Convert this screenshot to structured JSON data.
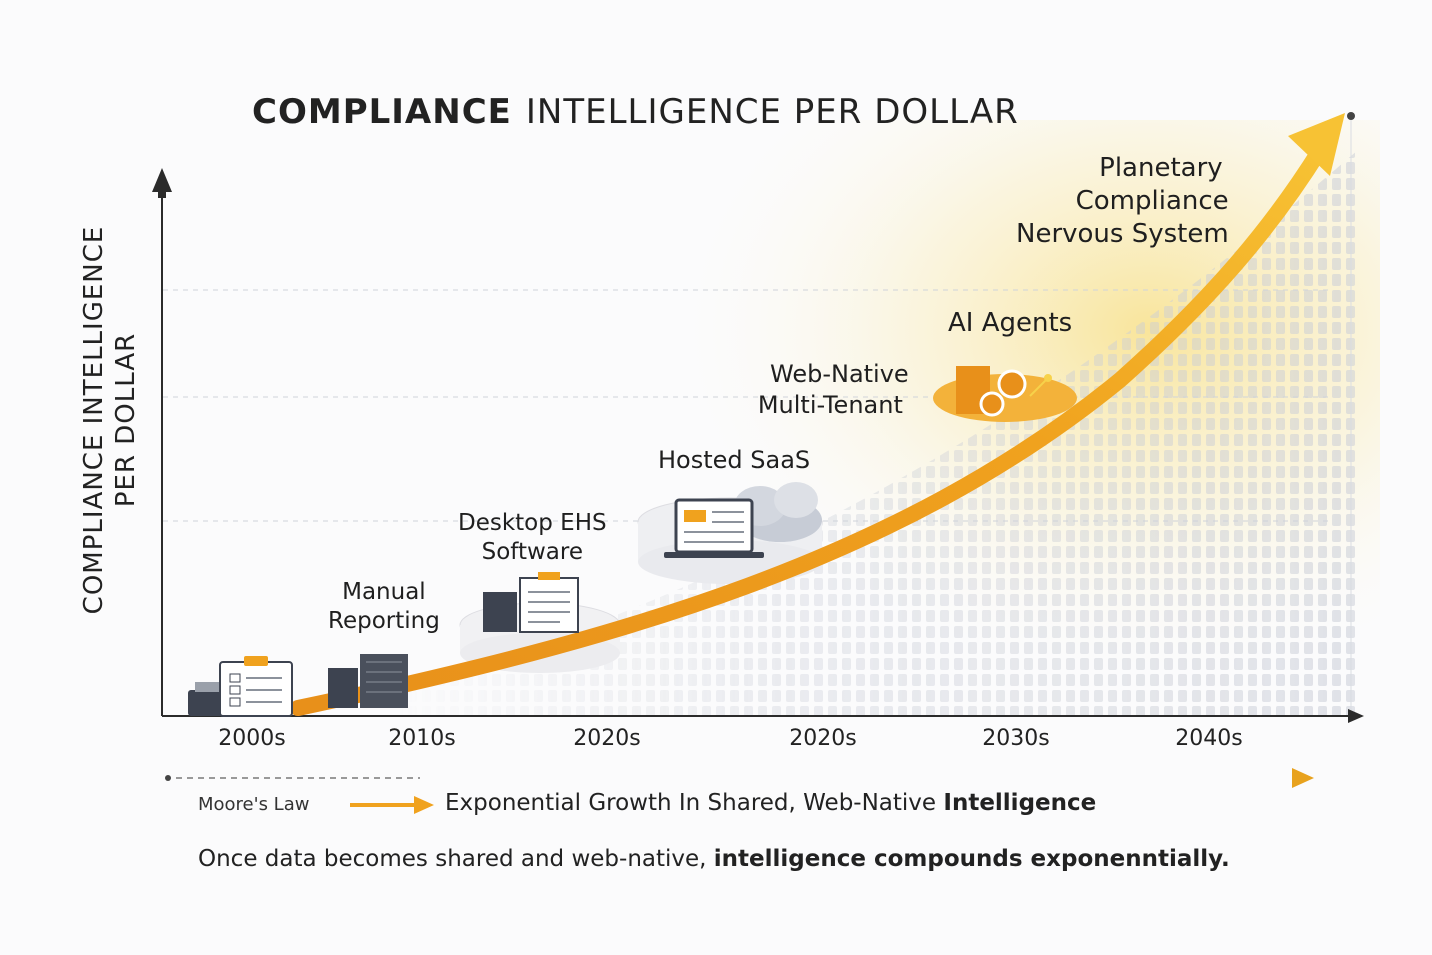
{
  "chart_data": {
    "type": "line",
    "title_bold": "COMPLIANCE",
    "title_rest": "INTELLIGENCE PER DOLLAR",
    "ylabel_line1": "COMPLIANCE INTELLIGENCE",
    "ylabel_line2": "PER DOLLAR",
    "x_ticks": [
      "2000s",
      "2010s",
      "2020s",
      "2020s",
      "2030s",
      "2040s"
    ],
    "stages": [
      {
        "id": "manual",
        "line1": "Manual",
        "line2": "Reporting"
      },
      {
        "id": "desktop",
        "line1": "Desktop EHS",
        "line2": "Software"
      },
      {
        "id": "hosted",
        "line1": "Hosted SaaS",
        "line2": ""
      },
      {
        "id": "webnative",
        "line1": "Web-Native",
        "line2": "Multi-Tenant"
      },
      {
        "id": "agents",
        "line1": "AI Agents",
        "line2": ""
      },
      {
        "id": "planetary",
        "line1": "Planetary",
        "line2": "Compliance",
        "line3": "Nervous System"
      }
    ],
    "curve": "exponential",
    "grid": true,
    "colors": {
      "curve": "#f0a21e",
      "curve_dark": "#e8901a",
      "glow": "#f7d24a",
      "axis": "#2b2b2b"
    }
  },
  "footer": {
    "moore_label": "Moore's Law",
    "expo_plain": "Exponential Growth In Shared, Web-Native",
    "expo_bold": "Intelligence",
    "caption_plain": "Once data becomes shared and web-native,",
    "caption_bold": "intelligence compounds exponenntially."
  },
  "icons": [
    "clipboard-icon",
    "fax-icon",
    "server-icon",
    "document-icon",
    "laptop-icon",
    "cloud-icon",
    "gear-icon"
  ]
}
